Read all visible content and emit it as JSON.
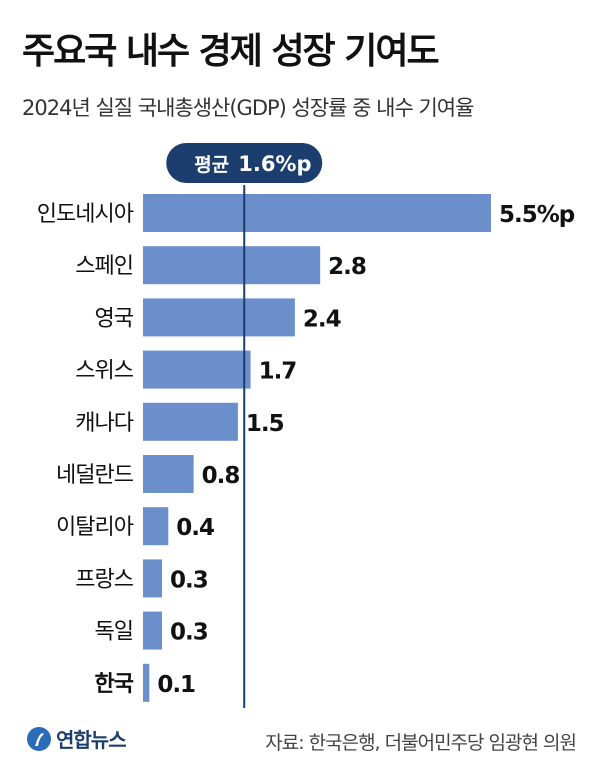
{
  "title": "주요국 내수 경제 성장 기여도",
  "subtitle": "2024년 실질 국내총생산(GDP) 성장률 중 내수 기여율",
  "source": "자료: 한국은행, 더불어민주당 임광현 의원",
  "logo": "연합뉴스",
  "colors": {
    "bar": "#6a8fcb",
    "accent": "#1c3e6e"
  },
  "chart_data": {
    "type": "bar",
    "orientation": "horizontal",
    "categories": [
      "인도네시아",
      "스페인",
      "영국",
      "스위스",
      "캐나다",
      "네덜란드",
      "이탈리아",
      "프랑스",
      "독일",
      "한국"
    ],
    "values": [
      5.5,
      2.8,
      2.4,
      1.7,
      1.5,
      0.8,
      0.4,
      0.3,
      0.3,
      0.1
    ],
    "value_labels": [
      "5.5%p",
      "2.8",
      "2.4",
      "1.7",
      "1.5",
      "0.8",
      "0.4",
      "0.3",
      "0.3",
      "0.1"
    ],
    "highlight": "한국",
    "average": {
      "label_prefix": "평균",
      "label_value": "1.6%p",
      "value": 1.6
    },
    "unit": "%p",
    "grid": false
  }
}
